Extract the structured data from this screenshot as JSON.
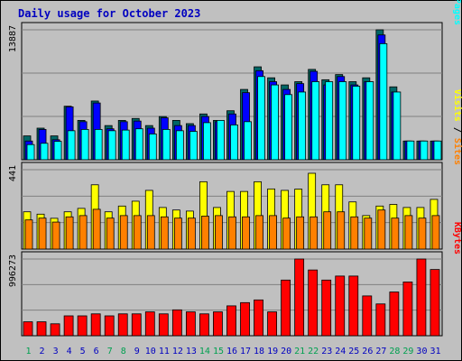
{
  "title": "Daily usage for October 2023",
  "colors": {
    "background": "#c0c0c0",
    "panel": "#c0c0c0",
    "title": "#0000c0",
    "gridline": "#808080",
    "hits": "#006666",
    "files": "#0000ff",
    "pages": "#00ffff",
    "visits": "#ffff00",
    "sites": "#ff8000",
    "kbytes": "#ff0000",
    "weekend_day": "#00a050",
    "weekday_day": "#0000c0"
  },
  "chart_data": [
    {
      "type": "bar",
      "ymax_label": "13887",
      "ymax": 13887,
      "series_labels": [
        "Pages",
        "Files",
        "Hits"
      ],
      "series": [
        {
          "name": "Hits",
          "values": [
            2549,
            3376,
            2549,
            5720,
            4204,
            6273,
            3652,
            4204,
            4410,
            3652,
            4617,
            4204,
            3858,
            4893,
            4204,
            5237,
            7514,
            9929,
            8756,
            7996,
            8342,
            9654,
            8549,
            9102,
            8342,
            8756,
            13887,
            7789,
            2000,
            2000,
            2000
          ]
        },
        {
          "name": "Files",
          "values": [
            2000,
            3239,
            2138,
            5651,
            4066,
            6066,
            3307,
            4066,
            4134,
            3376,
            4479,
            3652,
            3652,
            4617,
            4066,
            4893,
            7169,
            9516,
            8342,
            7514,
            8136,
            9445,
            7996,
            8893,
            7996,
            8342,
            13335,
            7238,
            2000,
            2000,
            2000
          ]
        },
        {
          "name": "Pages",
          "values": [
            1621,
            1759,
            1967,
            3101,
            3239,
            3239,
            3101,
            3170,
            3308,
            2756,
            3239,
            3101,
            3032,
            3962,
            4204,
            3721,
            4066,
            8893,
            7996,
            6962,
            7238,
            8342,
            8342,
            8342,
            7858,
            8342,
            12405,
            7238,
            2000,
            2000,
            2000
          ]
        }
      ],
      "note": "first-panel series"
    },
    {
      "type": "bar",
      "ymax_label": "441",
      "ymax": 441,
      "series_labels": [
        "Sites",
        "Visits"
      ],
      "series": [
        {
          "name": "Visits",
          "values": [
            207,
            194,
            171,
            207,
            226,
            357,
            207,
            239,
            266,
            326,
            231,
            217,
            211,
            374,
            231,
            320,
            320,
            374,
            334,
            326,
            333,
            421,
            357,
            357,
            262,
            186,
            239,
            248,
            231,
            231,
            276
          ]
        },
        {
          "name": "Sites",
          "values": [
            162,
            172,
            150,
            179,
            186,
            221,
            172,
            186,
            186,
            186,
            179,
            172,
            172,
            183,
            186,
            179,
            179,
            186,
            186,
            172,
            179,
            179,
            207,
            207,
            179,
            172,
            217,
            172,
            186,
            172,
            186
          ]
        }
      ]
    },
    {
      "type": "bar",
      "ymax_label": "996273",
      "ymax": 996273,
      "series_labels": [
        "KBytes"
      ],
      "series": [
        {
          "name": "KBytes",
          "values": [
            181000,
            181000,
            155000,
            258000,
            258000,
            284000,
            258000,
            284000,
            284000,
            310000,
            284000,
            336000,
            310000,
            284000,
            310000,
            388000,
            430000,
            465000,
            310000,
            723000,
            1000000,
            854000,
            723000,
            775000,
            775000,
            517000,
            413000,
            568000,
            698000,
            1000000,
            860000
          ]
        }
      ]
    }
  ],
  "days": [
    "1",
    "2",
    "3",
    "4",
    "5",
    "6",
    "7",
    "8",
    "9",
    "10",
    "11",
    "12",
    "13",
    "14",
    "15",
    "16",
    "17",
    "18",
    "19",
    "20",
    "21",
    "22",
    "23",
    "24",
    "25",
    "26",
    "27",
    "28",
    "29",
    "30",
    "31"
  ],
  "weekend_days": [
    "1",
    "7",
    "8",
    "14",
    "15",
    "21",
    "22",
    "28",
    "29"
  ]
}
